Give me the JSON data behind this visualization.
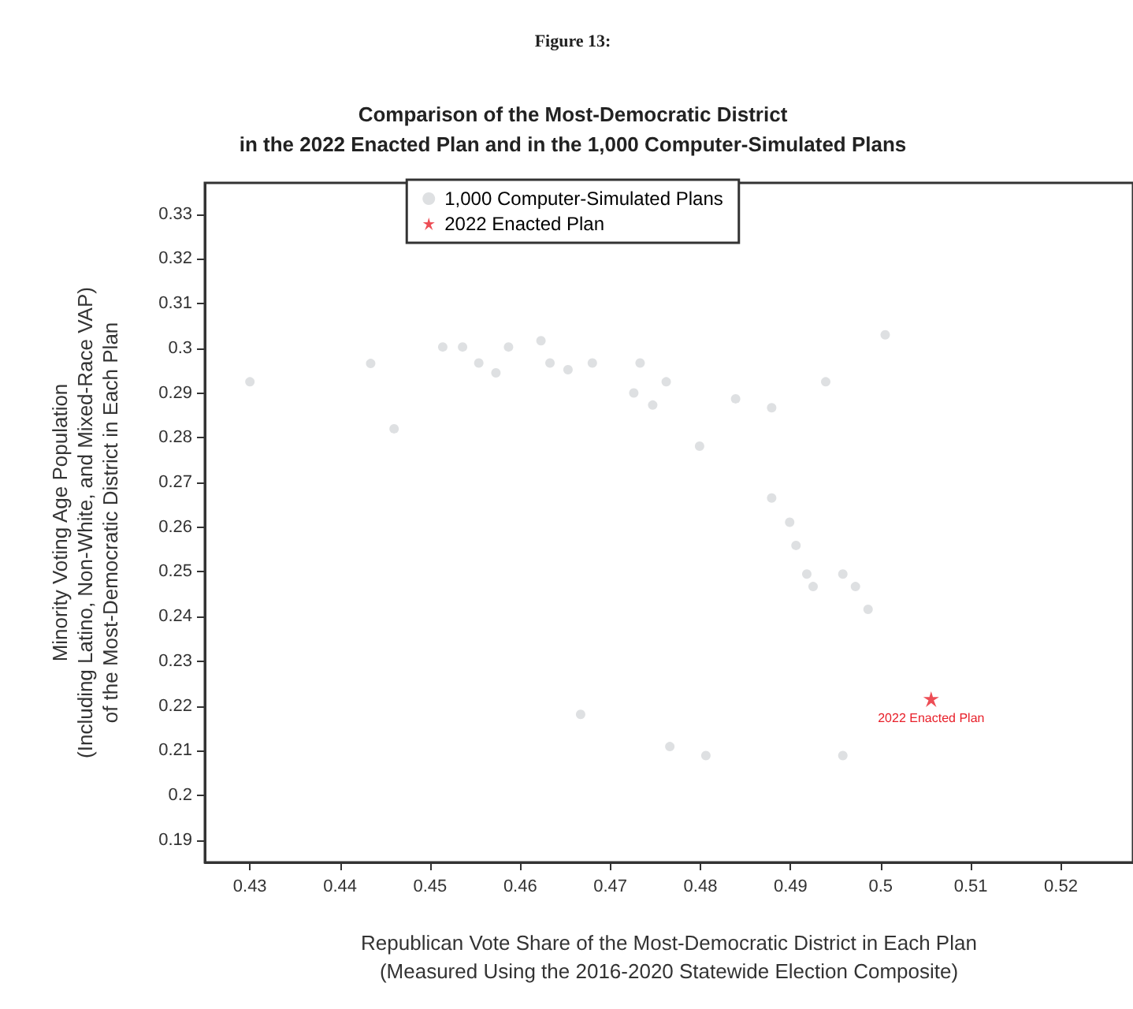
{
  "chart_data": {
    "type": "scatter",
    "title": "Figure 13:",
    "subtitle": "Comparison of the Most-Democratic District\nin the 2022 Enacted Plan and in the 1,000 Computer-Simulated Plans",
    "xlabel": "Republican Vote Share of the Most-Democratic District in Each Plan\n(Measured Using the 2016-2020 Statewide Election Composite)",
    "ylabel": "Minority Voting Age Population\n(Including Latino, Non-White, and Mixed-Race VAP)\nof the Most-Democratic District in Each Plan",
    "annotations": [
      {
        "text": "2022 Enacted Plan",
        "x": 0.5056,
        "y": 0.2215
      }
    ],
    "series": [
      {
        "name": "1,000 Computer-Simulated Plans",
        "color": "#d6d8db",
        "marker": "circle",
        "x": [
          0.43,
          0.4434,
          0.446,
          0.4514,
          0.4536,
          0.4554,
          0.4573,
          0.4587,
          0.4623,
          0.4633,
          0.4653,
          0.468,
          0.4733,
          0.4762,
          0.4726,
          0.4747,
          0.4839,
          0.4879,
          0.5005,
          0.4939,
          0.4799,
          0.4879,
          0.4899,
          0.4906,
          0.4918,
          0.4925,
          0.4958,
          0.4972,
          0.4986,
          0.4667,
          0.4766,
          0.4806,
          0.4958
        ],
        "values": [
          0.2925,
          0.2966,
          0.282,
          0.3003,
          0.3003,
          0.2967,
          0.2945,
          0.3003,
          0.3017,
          0.2967,
          0.2952,
          0.2967,
          0.2967,
          0.2925,
          0.29,
          0.2873,
          0.2887,
          0.2867,
          0.303,
          0.2925,
          0.2781,
          0.2665,
          0.2611,
          0.2559,
          0.2495,
          0.2467,
          0.2495,
          0.2467,
          0.2416,
          0.2181,
          0.2109,
          0.2089,
          0.2089
        ]
      },
      {
        "name": "2022 Enacted Plan",
        "color": "#e8202a",
        "marker": "star",
        "x": [
          0.5056
        ],
        "values": [
          0.2215
        ]
      }
    ],
    "xlim": [
      0.425,
      0.528
    ],
    "xticks": [
      0.43,
      0.44,
      0.45,
      0.46,
      0.47,
      0.48,
      0.49,
      0.5,
      0.51,
      0.52
    ],
    "ylim": [
      0.185,
      0.337
    ],
    "yticks": [
      0.19,
      0.2,
      0.21,
      0.22,
      0.23,
      0.24,
      0.25,
      0.26,
      0.27,
      0.28,
      0.29,
      0.3,
      0.31,
      0.32,
      0.33
    ],
    "grid": false,
    "legend": "top"
  }
}
